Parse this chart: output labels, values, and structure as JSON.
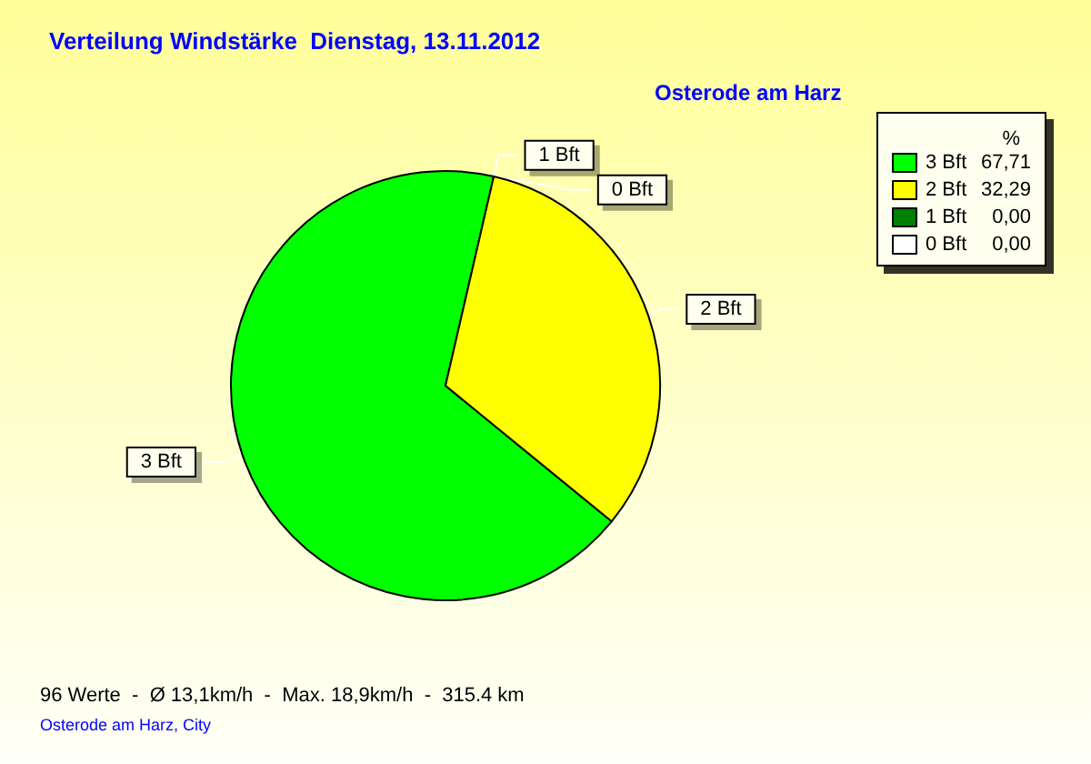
{
  "chart_data": {
    "type": "pie",
    "title": "Verteilung Windstärke  Dienstag, 13.11.2012",
    "subtitle": "Osterode am Harz",
    "legend_title": "%",
    "categories": [
      "3 Bft",
      "2 Bft",
      "1 Bft",
      "0 Bft"
    ],
    "values": [
      67.71,
      32.29,
      0,
      0
    ],
    "value_labels": [
      "67,71",
      "32,29",
      "0,00",
      "0,00"
    ],
    "colors": [
      "#00ff00",
      "#ffff00",
      "#008000",
      "#ffffff"
    ],
    "legend": "top right",
    "annotations": [
      "96 Werte  -  Ø 13,1km/h  -  Max. 18,9km/h  -  315.4 km",
      "Osterode am Harz, City"
    ]
  }
}
